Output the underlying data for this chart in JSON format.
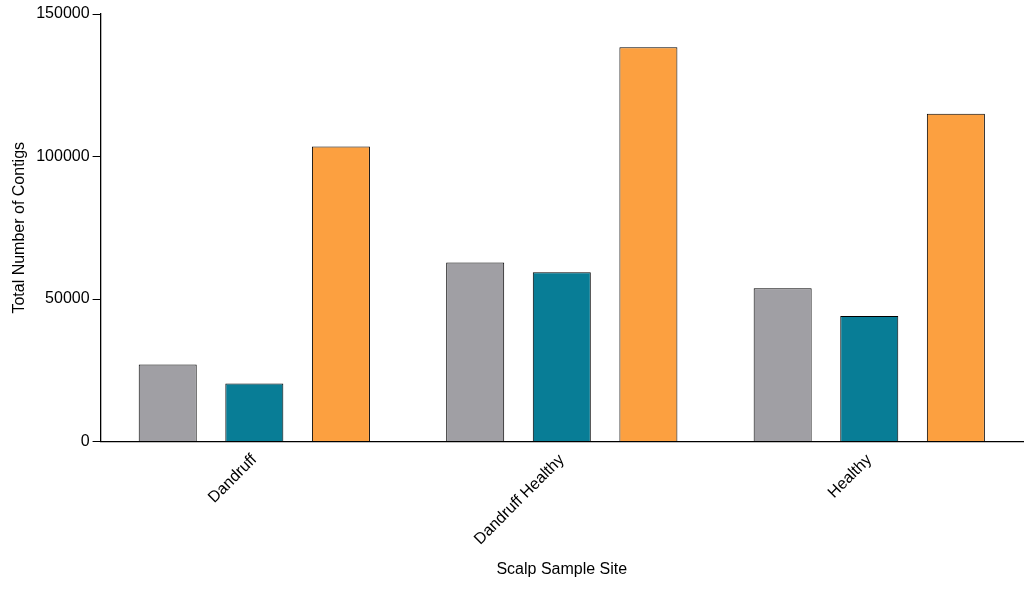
{
  "chart_data": {
    "type": "bar",
    "xlabel": "Scalp Sample Site",
    "ylabel": "Total Number of Contigs",
    "categories": [
      "Dandruff",
      "Dandruff Healthy",
      "Healthy"
    ],
    "series": [
      {
        "color": "#a09fa4",
        "values": [
          27000,
          62800,
          53800
        ]
      },
      {
        "color": "#087d96",
        "values": [
          20400,
          59400,
          44000
        ]
      },
      {
        "color": "#fca040",
        "values": [
          103500,
          138300,
          115000
        ]
      }
    ],
    "ylim": [
      0,
      150000
    ],
    "yticks": [
      0,
      50000,
      100000,
      150000
    ],
    "grid": false,
    "legend": false
  }
}
